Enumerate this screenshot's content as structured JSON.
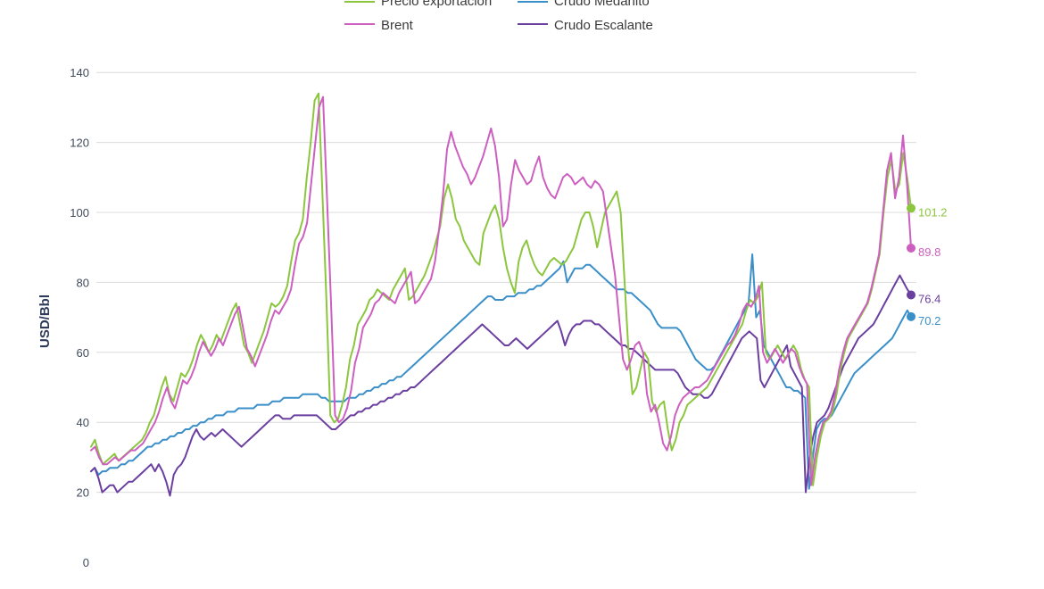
{
  "chart_data": {
    "type": "line",
    "ylabel": "USD/Bbl",
    "ylim": [
      0,
      140
    ],
    "yticks": [
      0,
      20,
      40,
      60,
      80,
      100,
      120,
      140
    ],
    "grid": true,
    "legend_position": "top",
    "series": [
      {
        "name": "Precio exportación",
        "color": "#8cc63f",
        "end_label": "101.2",
        "values": [
          33,
          35,
          31,
          28,
          29,
          30,
          31,
          29,
          30,
          31,
          32,
          33,
          34,
          35,
          37,
          40,
          42,
          46,
          50,
          53,
          48,
          46,
          50,
          54,
          53,
          55,
          58,
          62,
          65,
          63,
          60,
          62,
          65,
          63,
          66,
          69,
          72,
          74,
          68,
          62,
          60,
          57,
          60,
          63,
          66,
          70,
          74,
          73,
          74,
          76,
          79,
          86,
          92,
          94,
          98,
          110,
          120,
          132,
          134,
          105,
          75,
          42,
          40,
          41,
          45,
          50,
          58,
          62,
          68,
          70,
          72,
          75,
          76,
          78,
          77,
          76,
          75,
          78,
          80,
          82,
          84,
          75,
          76,
          78,
          80,
          82,
          85,
          88,
          92,
          96,
          104,
          108,
          104,
          98,
          96,
          92,
          90,
          88,
          86,
          85,
          94,
          97,
          100,
          102,
          98,
          90,
          84,
          80,
          77,
          86,
          90,
          92,
          88,
          85,
          83,
          82,
          84,
          86,
          87,
          86,
          85,
          86,
          88,
          90,
          94,
          98,
          100,
          100,
          96,
          90,
          95,
          100,
          102,
          104,
          106,
          100,
          80,
          60,
          48,
          50,
          55,
          60,
          58,
          46,
          43,
          45,
          46,
          38,
          32,
          35,
          40,
          42,
          45,
          46,
          47,
          48,
          49,
          50,
          52,
          54,
          56,
          58,
          60,
          62,
          64,
          66,
          68,
          72,
          75,
          74,
          76,
          80,
          60,
          58,
          60,
          62,
          60,
          58,
          60,
          62,
          60,
          55,
          52,
          50,
          22,
          30,
          36,
          40,
          41,
          43,
          48,
          55,
          60,
          64,
          66,
          68,
          70,
          72,
          74,
          78,
          83,
          88,
          100,
          110,
          115,
          106,
          108,
          117,
          110,
          101.2
        ]
      },
      {
        "name": "Brent",
        "color": "#cc5fc0",
        "end_label": "89.8",
        "values": [
          32,
          33,
          30,
          28,
          28,
          29,
          30,
          29,
          30,
          31,
          32,
          32,
          33,
          34,
          36,
          38,
          40,
          43,
          47,
          50,
          46,
          44,
          48,
          52,
          51,
          53,
          56,
          60,
          63,
          61,
          59,
          61,
          64,
          62,
          65,
          68,
          71,
          73,
          67,
          61,
          59,
          56,
          59,
          62,
          65,
          69,
          72,
          71,
          73,
          75,
          78,
          85,
          91,
          93,
          97,
          108,
          119,
          130,
          133,
          104,
          74,
          42,
          40,
          41,
          44,
          49,
          57,
          61,
          67,
          69,
          71,
          74,
          75,
          77,
          76,
          75,
          74,
          77,
          79,
          81,
          83,
          74,
          75,
          77,
          79,
          81,
          86,
          95,
          105,
          118,
          123,
          119,
          116,
          113,
          111,
          108,
          110,
          113,
          116,
          120,
          124,
          119,
          110,
          96,
          98,
          108,
          115,
          112,
          110,
          108,
          109,
          113,
          116,
          110,
          107,
          105,
          104,
          107,
          110,
          111,
          110,
          108,
          109,
          110,
          108,
          107,
          109,
          108,
          106,
          98,
          90,
          82,
          70,
          58,
          55,
          58,
          62,
          63,
          60,
          48,
          43,
          45,
          40,
          34,
          32,
          36,
          42,
          45,
          47,
          48,
          49,
          50,
          50,
          51,
          52,
          54,
          56,
          58,
          60,
          62,
          63,
          65,
          68,
          72,
          74,
          73,
          75,
          79,
          60,
          57,
          59,
          61,
          59,
          57,
          59,
          61,
          60,
          56,
          53,
          51,
          22,
          30,
          36,
          40,
          41,
          43,
          48,
          55,
          60,
          64,
          66,
          68,
          70,
          72,
          74,
          78,
          83,
          88,
          100,
          112,
          117,
          104,
          110,
          122,
          108,
          89.8
        ]
      },
      {
        "name": "Crudo Medanito",
        "color": "#3a8fc9",
        "end_label": "70.2",
        "values": [
          26,
          27,
          25,
          26,
          26,
          27,
          27,
          27,
          28,
          28,
          29,
          29,
          30,
          31,
          32,
          33,
          33,
          34,
          34,
          35,
          35,
          36,
          36,
          37,
          37,
          38,
          38,
          39,
          39,
          40,
          40,
          41,
          41,
          42,
          42,
          42,
          43,
          43,
          43,
          44,
          44,
          44,
          44,
          44,
          45,
          45,
          45,
          45,
          46,
          46,
          46,
          47,
          47,
          47,
          47,
          47,
          48,
          48,
          48,
          48,
          48,
          47,
          47,
          46,
          46,
          46,
          46,
          46,
          47,
          47,
          47,
          48,
          48,
          49,
          49,
          50,
          50,
          51,
          51,
          52,
          52,
          53,
          53,
          54,
          55,
          56,
          57,
          58,
          59,
          60,
          61,
          62,
          63,
          64,
          65,
          66,
          67,
          68,
          69,
          70,
          71,
          72,
          73,
          74,
          75,
          76,
          76,
          75,
          75,
          75,
          76,
          76,
          76,
          77,
          77,
          77,
          78,
          78,
          79,
          79,
          80,
          81,
          82,
          83,
          84,
          86,
          80,
          82,
          84,
          84,
          84,
          85,
          85,
          84,
          83,
          82,
          81,
          80,
          79,
          78,
          78,
          78,
          77,
          77,
          76,
          75,
          74,
          73,
          72,
          70,
          68,
          67,
          67,
          67,
          67,
          67,
          66,
          64,
          62,
          60,
          58,
          57,
          56,
          55,
          55,
          56,
          58,
          60,
          62,
          64,
          66,
          68,
          70,
          72,
          74,
          88,
          70,
          72,
          62,
          60,
          58,
          56,
          54,
          52,
          50,
          50,
          49,
          49,
          48,
          47,
          21,
          30,
          38,
          40,
          41,
          41,
          42,
          44,
          46,
          48,
          50,
          52,
          54,
          55,
          56,
          57,
          58,
          59,
          60,
          61,
          62,
          63,
          64,
          66,
          68,
          70,
          72,
          70.2
        ]
      },
      {
        "name": "Crudo Escalante",
        "color": "#6b3fa0",
        "end_label": "76.4",
        "values": [
          26,
          27,
          24,
          20,
          21,
          22,
          22,
          20,
          21,
          22,
          23,
          23,
          24,
          25,
          26,
          27,
          28,
          26,
          28,
          26,
          23,
          19,
          25,
          27,
          28,
          30,
          33,
          36,
          38,
          36,
          35,
          36,
          37,
          36,
          37,
          38,
          37,
          36,
          35,
          34,
          33,
          34,
          35,
          36,
          37,
          38,
          39,
          40,
          41,
          42,
          42,
          41,
          41,
          41,
          42,
          42,
          42,
          42,
          42,
          42,
          42,
          41,
          40,
          39,
          38,
          38,
          39,
          40,
          41,
          42,
          42,
          43,
          43,
          44,
          44,
          45,
          45,
          46,
          46,
          47,
          47,
          48,
          48,
          49,
          49,
          50,
          50,
          51,
          52,
          53,
          54,
          55,
          56,
          57,
          58,
          59,
          60,
          61,
          62,
          63,
          64,
          65,
          66,
          67,
          68,
          67,
          66,
          65,
          64,
          63,
          62,
          62,
          63,
          64,
          63,
          62,
          61,
          62,
          63,
          64,
          65,
          66,
          67,
          68,
          69,
          66,
          62,
          65,
          67,
          68,
          68,
          69,
          69,
          69,
          68,
          68,
          67,
          66,
          65,
          64,
          63,
          62,
          62,
          61,
          61,
          60,
          59,
          58,
          57,
          56,
          55,
          55,
          55,
          55,
          55,
          55,
          54,
          52,
          50,
          49,
          48,
          48,
          48,
          47,
          47,
          48,
          50,
          52,
          54,
          56,
          58,
          60,
          62,
          64,
          65,
          66,
          65,
          64,
          52,
          50,
          52,
          54,
          56,
          58,
          60,
          62,
          56,
          54,
          52,
          50,
          20,
          30,
          36,
          40,
          41,
          42,
          44,
          47,
          50,
          53,
          56,
          58,
          60,
          62,
          64,
          65,
          66,
          67,
          68,
          70,
          72,
          74,
          76,
          78,
          80,
          82,
          80,
          78,
          76.4
        ]
      }
    ]
  }
}
